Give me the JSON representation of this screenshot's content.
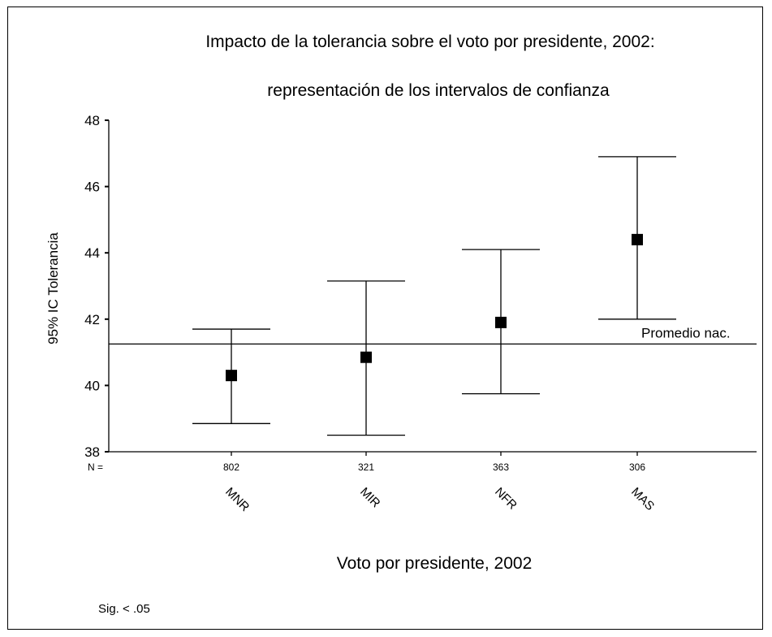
{
  "chart_data": {
    "type": "errorbar",
    "title": "Impacto de la tolerancia sobre el voto por presidente, 2002:",
    "subtitle": "representación de los intervalos de confianza",
    "xlabel": "Voto por presidente, 2002",
    "ylabel": "95% IC Tolerancia",
    "ylim": [
      38,
      48
    ],
    "yticks": [
      "38",
      "40",
      "42",
      "44",
      "46",
      "48"
    ],
    "n_label": "N =",
    "categories": [
      "MNR",
      "MIR",
      "NFR",
      "MAS"
    ],
    "n_values": [
      "802",
      "321",
      "363",
      "306"
    ],
    "means": [
      40.3,
      40.85,
      41.9,
      44.4
    ],
    "lower": [
      38.85,
      38.5,
      39.75,
      42.0
    ],
    "upper": [
      41.7,
      43.15,
      44.1,
      46.9
    ],
    "reference_line": {
      "label": "Promedio nac.",
      "value": 41.25
    },
    "note": "Sig. < .05",
    "grid": false,
    "legend": "none"
  }
}
